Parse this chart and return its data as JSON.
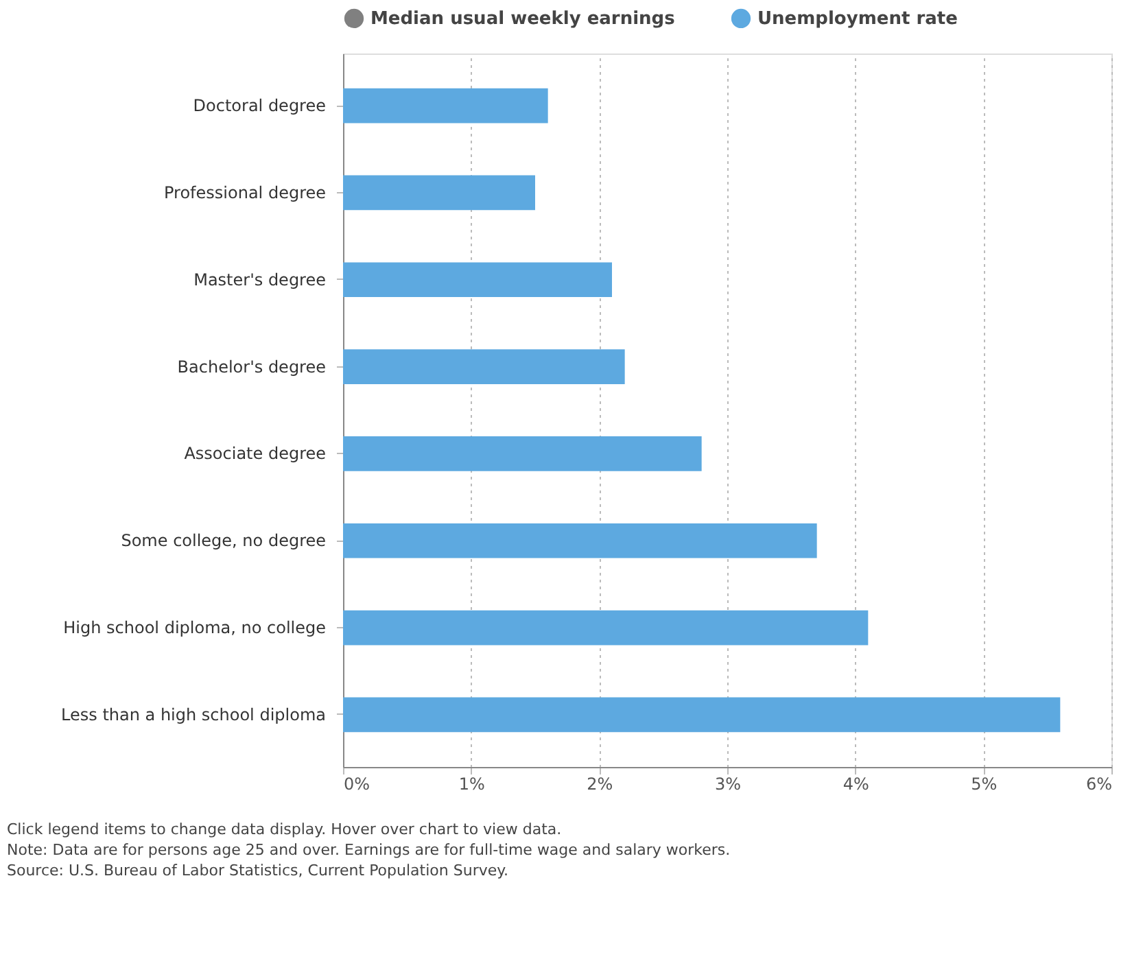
{
  "chart_data": {
    "type": "bar",
    "orientation": "horizontal",
    "categories": [
      "Doctoral degree",
      "Professional degree",
      "Master's degree",
      "Bachelor's degree",
      "Associate degree",
      "Some college, no degree",
      "High school diploma, no college",
      "Less than a high school diploma"
    ],
    "series": [
      {
        "name": "Median usual weekly earnings",
        "color": "#808080",
        "values": [
          null,
          null,
          null,
          null,
          null,
          null,
          null,
          null
        ]
      },
      {
        "name": "Unemployment rate",
        "color": "#5da9e0",
        "values": [
          1.6,
          1.5,
          2.1,
          2.2,
          2.8,
          3.7,
          4.1,
          5.6
        ]
      }
    ],
    "xlim": [
      0,
      6
    ],
    "xticks": [
      {
        "value": 0,
        "label": "0%"
      },
      {
        "value": 1,
        "label": "1%"
      },
      {
        "value": 2,
        "label": "2%"
      },
      {
        "value": 3,
        "label": "3%"
      },
      {
        "value": 4,
        "label": "4%"
      },
      {
        "value": 5,
        "label": "5%"
      },
      {
        "value": 6,
        "label": "6%"
      }
    ],
    "grid": "x",
    "legend": "top",
    "annotations": [
      "Click legend items to change data display. Hover over chart to view data.",
      "Note: Data are for persons age 25 and over. Earnings are for full-time wage and salary workers.",
      "Source: U.S. Bureau of Labor Statistics, Current Population Survey."
    ]
  }
}
